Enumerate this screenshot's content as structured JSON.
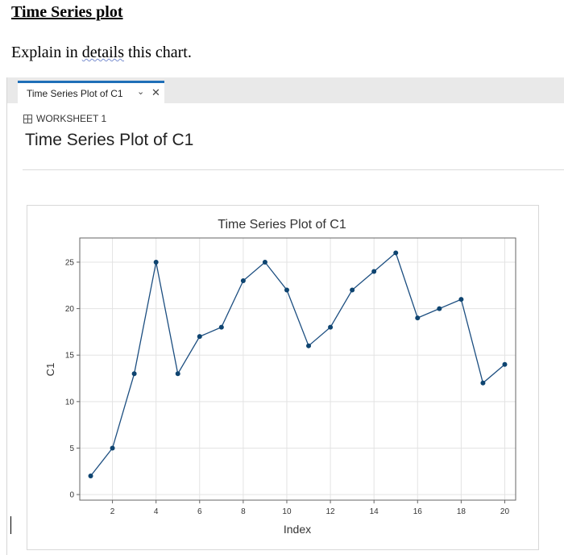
{
  "document": {
    "heading": "Time Series plot",
    "prompt_before": "Explain in ",
    "prompt_squiggle": "details",
    "prompt_after": " this chart."
  },
  "app": {
    "tab_label": "Time Series Plot of C1",
    "tab_chevron_icon": "chevron-down-icon",
    "tab_close_icon": "close-icon",
    "worksheet_icon": "grid-icon",
    "worksheet_label": "WORKSHEET 1",
    "page_title": "Time Series Plot of C1",
    "accent_color": "#1f6fb8"
  },
  "chart_data": {
    "type": "line",
    "title": "Time Series Plot of C1",
    "xlabel": "Index",
    "ylabel": "C1",
    "x": [
      1,
      2,
      3,
      4,
      5,
      6,
      7,
      8,
      9,
      10,
      11,
      12,
      13,
      14,
      15,
      16,
      17,
      18,
      19,
      20
    ],
    "values": [
      2,
      5,
      13,
      25,
      13,
      17,
      18,
      23,
      25,
      22,
      16,
      18,
      22,
      24,
      26,
      19,
      20,
      21,
      12,
      14
    ],
    "xticks": [
      2,
      4,
      6,
      8,
      10,
      12,
      14,
      16,
      18,
      20
    ],
    "yticks": [
      0,
      5,
      10,
      15,
      20,
      25
    ],
    "xlim": [
      0.5,
      20.5
    ],
    "ylim": [
      -0.6,
      27.6
    ],
    "grid": true,
    "line_color": "#1c4e80",
    "marker_color": "#0e4470"
  }
}
